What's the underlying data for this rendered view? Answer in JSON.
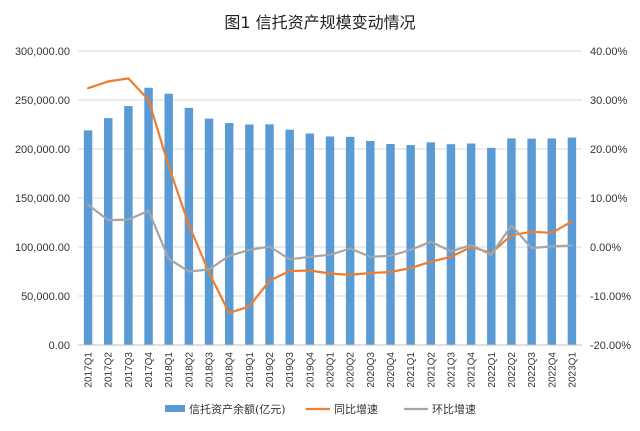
{
  "chart_data": {
    "type": "bar+line",
    "title": "图1  信托资产规模变动情况",
    "categories": [
      "2017Q1",
      "2017Q2",
      "2017Q3",
      "2017Q4",
      "2018Q1",
      "2018Q2",
      "2018Q3",
      "2018Q4",
      "2019Q1",
      "2019Q2",
      "2019Q3",
      "2019Q4",
      "2020Q1",
      "2020Q2",
      "2020Q3",
      "2020Q4",
      "2021Q1",
      "2021Q2",
      "2021Q3",
      "2021Q4",
      "2022Q1",
      "2022Q2",
      "2022Q3",
      "2022Q4",
      "2023Q1"
    ],
    "left_axis": {
      "min": 0,
      "max": 300000,
      "step": 50000,
      "tick_labels": [
        "0.00",
        "50,000.00",
        "100,000.00",
        "150,000.00",
        "200,000.00",
        "250,000.00",
        "300,000.00"
      ]
    },
    "right_axis": {
      "min": -20,
      "max": 40,
      "step": 10,
      "tick_labels": [
        "-20.00%",
        "-10.00%",
        "0.00%",
        "10.00%",
        "20.00%",
        "30.00%",
        "40.00%"
      ]
    },
    "series": [
      {
        "name": "信托资产余额(亿元)",
        "kind": "bar",
        "axis": "left",
        "color": "#5B9BD5",
        "values": [
          219000,
          231500,
          243800,
          262500,
          256400,
          242000,
          231000,
          226500,
          225000,
          225200,
          219700,
          215800,
          212800,
          212400,
          208200,
          205100,
          204000,
          206800,
          204900,
          205600,
          201200,
          210800,
          210600,
          210800,
          211700
        ]
      },
      {
        "name": "同比增速",
        "kind": "line",
        "axis": "right",
        "color": "#ED7D31",
        "values": [
          32.4,
          33.8,
          34.4,
          30.0,
          16.5,
          4.5,
          -5.2,
          -13.5,
          -12.1,
          -6.9,
          -4.9,
          -4.8,
          -5.4,
          -5.7,
          -5.3,
          -5.1,
          -4.3,
          -3.0,
          -2.0,
          0.0,
          -1.2,
          2.4,
          3.1,
          2.9,
          5.2
        ]
      },
      {
        "name": "环比增速",
        "kind": "line",
        "axis": "right",
        "color": "#A5A5A5",
        "values": [
          8.6,
          5.5,
          5.6,
          7.4,
          -2.4,
          -5.0,
          -4.6,
          -1.8,
          -0.6,
          0.1,
          -2.5,
          -2.0,
          -1.6,
          -0.3,
          -2.0,
          -1.8,
          -0.6,
          1.1,
          -0.9,
          0.4,
          -1.6,
          4.4,
          -0.2,
          0.1,
          0.3
        ]
      }
    ],
    "grid": true,
    "legend_position": "bottom"
  }
}
